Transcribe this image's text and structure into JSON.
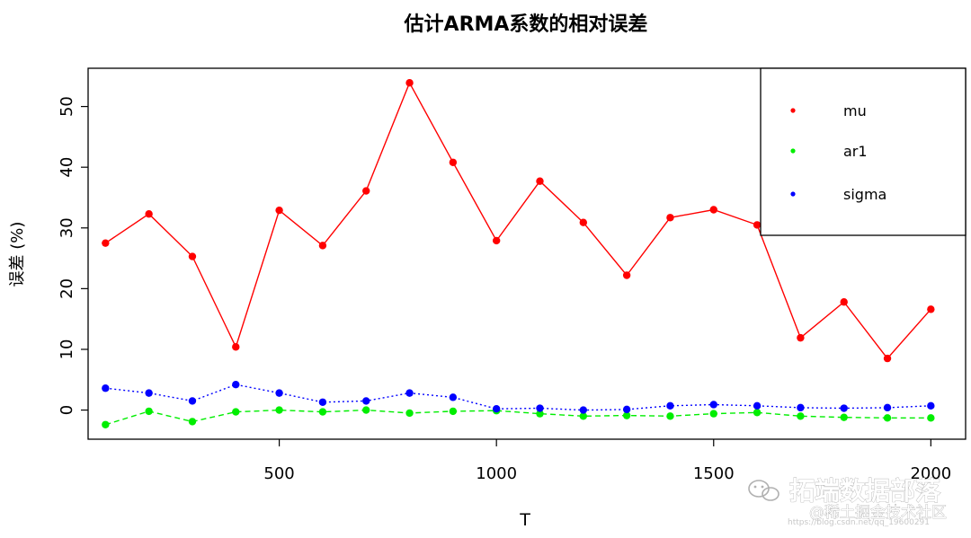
{
  "chart_data": {
    "type": "line",
    "title": "估计ARMA系数的相对误差",
    "xlabel": "T",
    "ylabel": "误差 (%)",
    "x": [
      100,
      200,
      300,
      400,
      500,
      600,
      700,
      800,
      900,
      1000,
      1100,
      1200,
      1300,
      1400,
      1500,
      1600,
      1700,
      1800,
      1900,
      2000
    ],
    "xlim": [
      60,
      2080
    ],
    "ylim": [
      -4.8,
      56.3
    ],
    "xticks": [
      500,
      1000,
      1500,
      2000
    ],
    "xtick_labels": [
      "500",
      "1000",
      "1500",
      "2000"
    ],
    "yticks": [
      0,
      10,
      20,
      30,
      40,
      50
    ],
    "ytick_labels": [
      "0",
      "10",
      "20",
      "30",
      "40",
      "50"
    ],
    "grid": false,
    "legend_position": "top-right",
    "series": [
      {
        "name": "mu",
        "color": "#ff0000",
        "line_style": "solid",
        "values": [
          27.5,
          32.3,
          25.3,
          10.4,
          32.9,
          27.1,
          36.1,
          53.9,
          40.8,
          27.9,
          37.7,
          30.9,
          22.2,
          31.7,
          33.0,
          30.5,
          11.9,
          17.8,
          8.5,
          16.6
        ]
      },
      {
        "name": "ar1",
        "color": "#00ee00",
        "line_style": "dashed",
        "values": [
          -2.4,
          -0.2,
          -1.9,
          -0.3,
          0.0,
          -0.3,
          0.0,
          -0.5,
          -0.2,
          -0.1,
          -0.6,
          -1.0,
          -0.9,
          -1.0,
          -0.6,
          -0.4,
          -1.0,
          -1.2,
          -1.3,
          -1.3
        ]
      },
      {
        "name": "sigma",
        "color": "#0000ff",
        "line_style": "dotted",
        "values": [
          3.6,
          2.8,
          1.5,
          4.2,
          2.8,
          1.3,
          1.5,
          2.8,
          2.1,
          0.2,
          0.3,
          0.0,
          0.1,
          0.7,
          0.9,
          0.7,
          0.4,
          0.3,
          0.4,
          0.7
        ]
      }
    ]
  },
  "watermark": {
    "brand": "拓端数据部落",
    "site": "@稀土掘金技术社区",
    "url": "https://blog.csdn.net/qq_19600291",
    "icon": "wechat-icon"
  }
}
